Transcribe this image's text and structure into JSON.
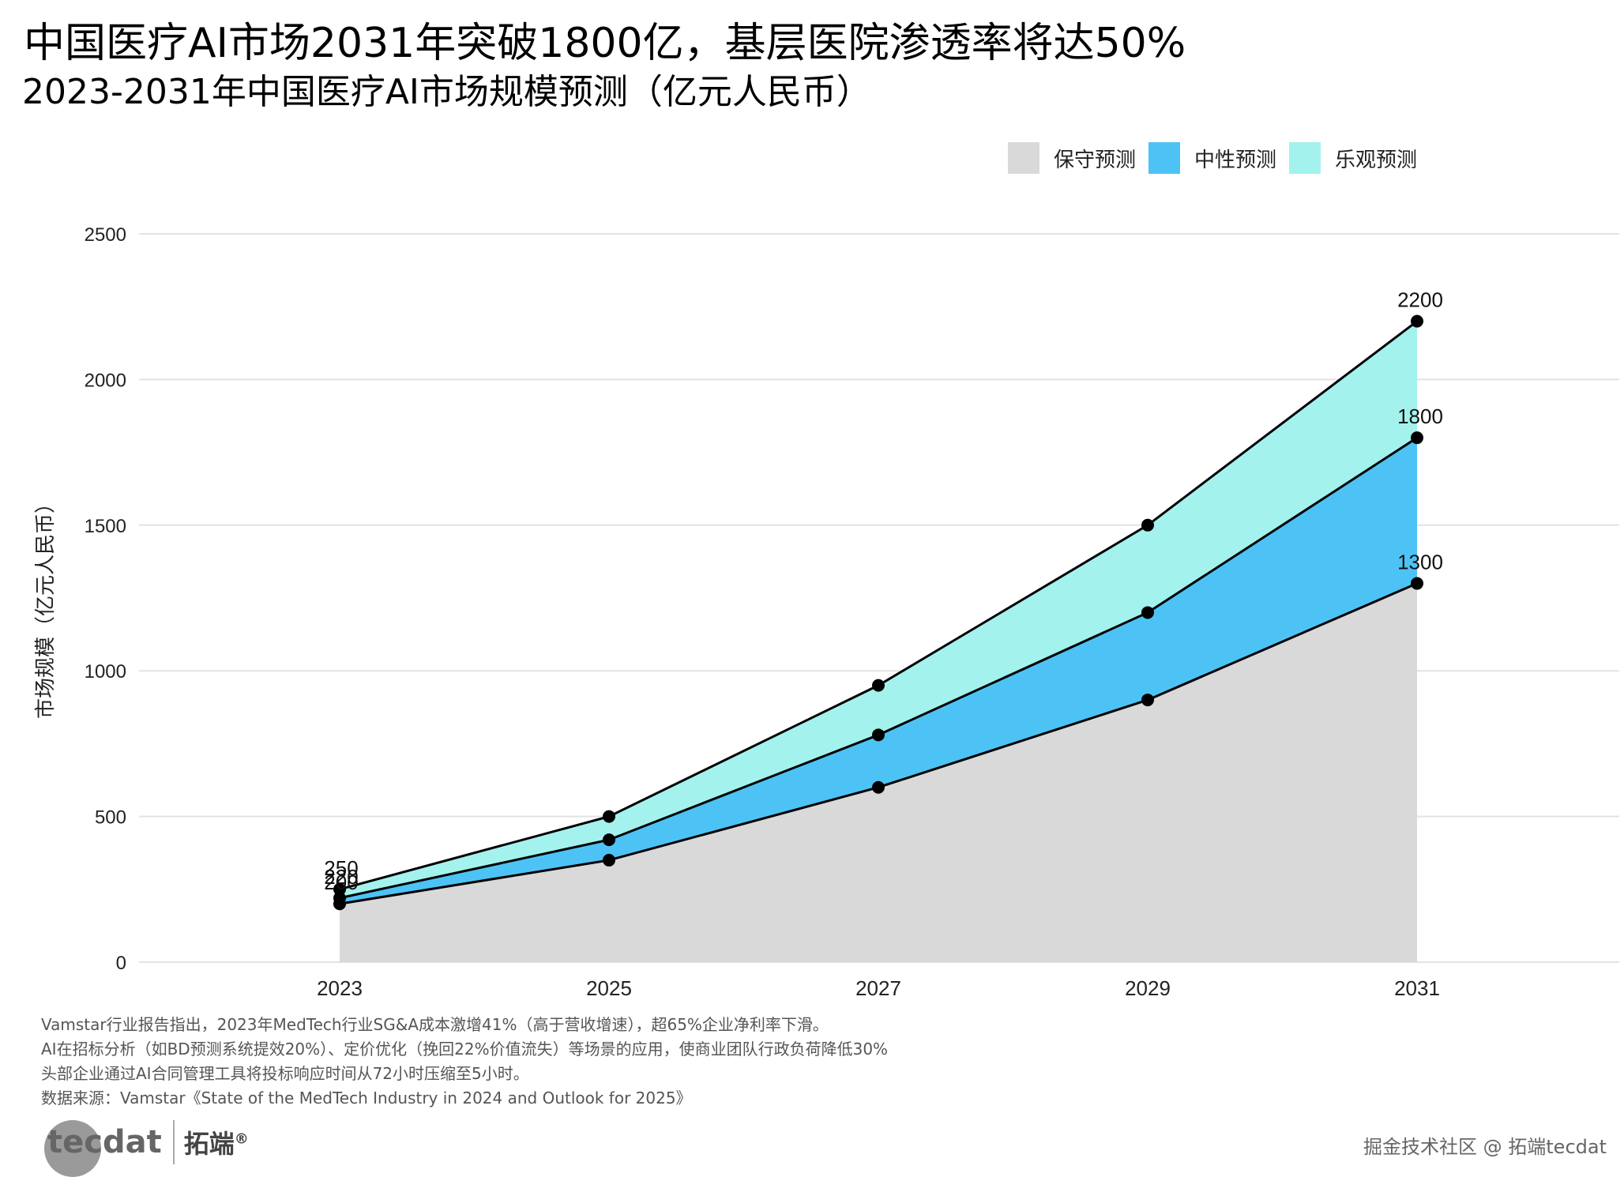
{
  "title": "中国医疗AI市场2031年突破1800亿，基层医院渗透率将达50%",
  "subtitle": "2023-2031年中国医疗AI市场规模预测（亿元人民币）",
  "legend": [
    {
      "label": "保守预测",
      "color": "#d9d9d9"
    },
    {
      "label": "中性预测",
      "color": "#4dc3f5"
    },
    {
      "label": "乐观预测",
      "color": "#a3f2ee"
    }
  ],
  "chart_data": {
    "type": "area",
    "x": [
      2023,
      2025,
      2027,
      2029,
      2031
    ],
    "x_tick_labels": [
      "2023",
      "2025",
      "2027",
      "2029",
      "2031"
    ],
    "y_ticks": [
      0,
      500,
      1000,
      1500,
      2000,
      2500
    ],
    "ylim": [
      0,
      2500
    ],
    "ylabel": "市场规模（亿元人民币）",
    "xlabel": "",
    "grid": "horizontal",
    "legend_position": "top-right",
    "series": [
      {
        "name": "保守预测",
        "values": [
          200,
          350,
          600,
          900,
          1300
        ],
        "color": "#d9d9d9"
      },
      {
        "name": "中性预测",
        "values": [
          220,
          420,
          780,
          1200,
          1800
        ],
        "color": "#4dc3f5"
      },
      {
        "name": "乐观预测",
        "values": [
          250,
          500,
          950,
          1500,
          2200
        ],
        "color": "#a3f2ee"
      }
    ],
    "data_labels": [
      {
        "x": 2023,
        "values": [
          "250",
          "220",
          "200"
        ]
      },
      {
        "x": 2031,
        "values": [
          "2200",
          "1800",
          "1300"
        ]
      }
    ]
  },
  "notes": [
    "Vamstar行业报告指出，2023年MedTech行业SG&A成本激增41%（高于营收增速），超65%企业净利率下滑。",
    "AI在招标分析（如BD预测系统提效20%）、定价优化（挽回22%价值流失）等场景的应用，使商业团队行政负荷降低30%",
    "头部企业通过AI合同管理工具将投标响应时间从72小时压缩至5小时。",
    "数据来源：Vamstar《State of the MedTech Industry in 2024 and Outlook for 2025》"
  ],
  "logo": {
    "en": "tecdat",
    "cn": "拓端",
    "mark": "®"
  },
  "watermark": "掘金技术社区 @ 拓端tecdat"
}
